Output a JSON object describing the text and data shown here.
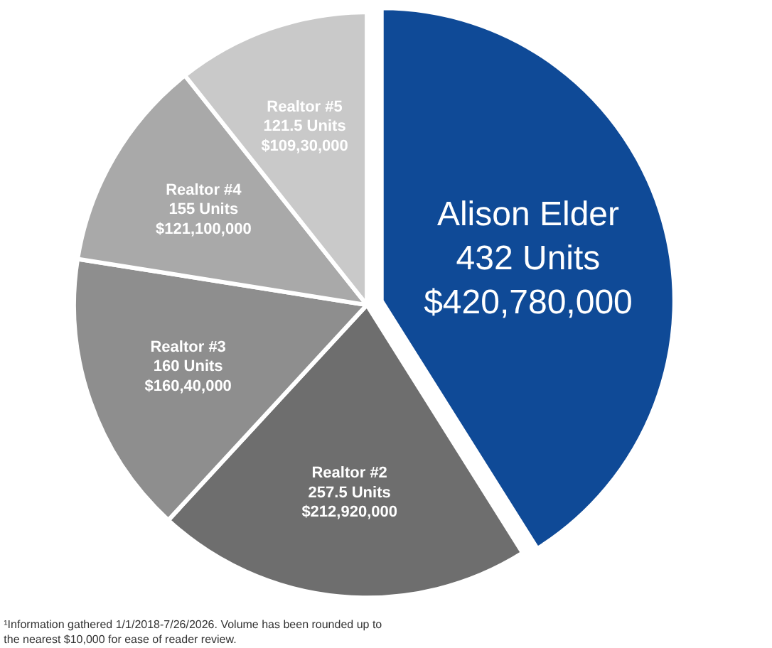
{
  "chart_data": {
    "type": "pie",
    "categories": [
      "Alison Elder",
      "Realtor #2",
      "Realtor #3",
      "Realtor #4",
      "Realtor #5"
    ],
    "values": [
      420780000,
      212920000,
      160400000,
      121100000,
      109300000
    ],
    "colors": [
      "#0f4a97",
      "#6e6e6e",
      "#8e8e8e",
      "#a9a9a9",
      "#c9c9c9"
    ],
    "value_labels": [
      "432 Units\n$420,780,000",
      "257.5 Units\n$212,920,000",
      "160 Units\n$160,40,000",
      "155 Units\n$121,100,000",
      "121.5 Units\n$109,30,000"
    ],
    "annotations": [
      "¹Information gathered 1/1/2018-7/26/2026. Volume has been rounded up to the nearest $10,000 for ease of reader review."
    ]
  }
}
